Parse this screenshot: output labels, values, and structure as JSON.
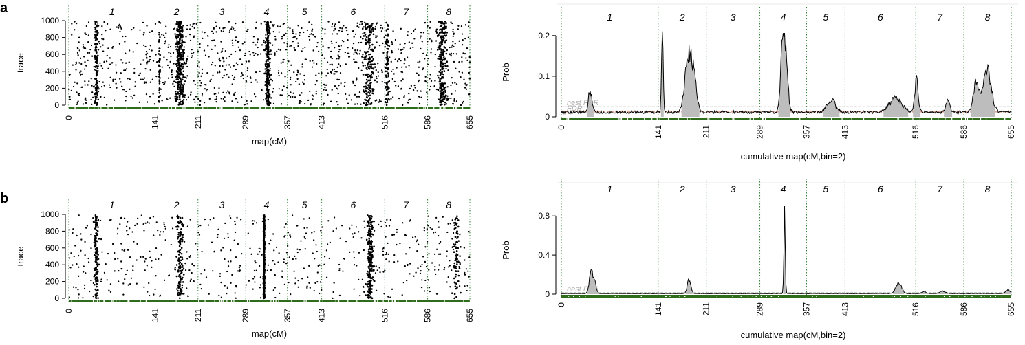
{
  "panels": [
    {
      "letter": "a",
      "chart_data": [
        {
          "type": "scatter",
          "xlabel": "map(cM)",
          "ylabel": "trace",
          "xlim": [
            0,
            655
          ],
          "ylim": [
            0,
            1000
          ],
          "yticks": [
            0,
            200,
            400,
            600,
            800,
            1000
          ],
          "xticks": [
            0,
            141,
            211,
            289,
            357,
            413,
            516,
            586,
            655
          ],
          "chromosomes": [
            {
              "label": "1",
              "start": 0,
              "end": 141
            },
            {
              "label": "2",
              "start": 141,
              "end": 211
            },
            {
              "label": "3",
              "start": 211,
              "end": 289
            },
            {
              "label": "4",
              "start": 289,
              "end": 357
            },
            {
              "label": "5",
              "start": 357,
              "end": 413
            },
            {
              "label": "6",
              "start": 413,
              "end": 516
            },
            {
              "label": "7",
              "start": 516,
              "end": 586
            },
            {
              "label": "8",
              "start": 586,
              "end": 655
            }
          ],
          "background_density": 1.8,
          "hotspots": [
            {
              "x": 45,
              "width": 3,
              "density": 0.3
            },
            {
              "x": 148,
              "width": 1.5,
              "density": 0.1
            },
            {
              "x": 181,
              "width": 7,
              "density": 0.75
            },
            {
              "x": 325,
              "width": 4,
              "density": 0.55
            },
            {
              "x": 490,
              "width": 9,
              "density": 0.45
            },
            {
              "x": 520,
              "width": 3,
              "density": 0.2
            },
            {
              "x": 610,
              "width": 7,
              "density": 0.55
            }
          ]
        },
        {
          "type": "area",
          "xlabel": "cumulative map(cM,bin=2)",
          "ylabel": "Prob",
          "xlim": [
            0,
            655
          ],
          "ylim": [
            0,
            0.22
          ],
          "yticks": [
            0.0,
            0.1,
            0.2
          ],
          "xticks": [
            0,
            141,
            211,
            289,
            357,
            413,
            516,
            586,
            655
          ],
          "chromosomes": [
            "1",
            "2",
            "3",
            "4",
            "5",
            "6",
            "7",
            "8"
          ],
          "baseline": 0.01,
          "reference_lines": [
            {
              "label": "nest FDR",
              "value": 0.025,
              "color": "#b0b0b0"
            },
            {
              "label": "FDR",
              "value": 0.012,
              "color": "#d07050"
            }
          ],
          "peaks": [
            {
              "x": 42,
              "height": 0.054,
              "width": 2.5
            },
            {
              "x": 147,
              "height": 0.215,
              "width": 1.2
            },
            {
              "x": 185,
              "height": 0.13,
              "width": 5
            },
            {
              "x": 193,
              "height": 0.07,
              "width": 4
            },
            {
              "x": 322,
              "height": 0.14,
              "width": 3
            },
            {
              "x": 327,
              "height": 0.12,
              "width": 3
            },
            {
              "x": 393,
              "height": 0.03,
              "width": 6
            },
            {
              "x": 487,
              "height": 0.035,
              "width": 9
            },
            {
              "x": 517,
              "height": 0.08,
              "width": 2.5
            },
            {
              "x": 563,
              "height": 0.03,
              "width": 3
            },
            {
              "x": 604,
              "height": 0.07,
              "width": 4
            },
            {
              "x": 620,
              "height": 0.1,
              "width": 6
            }
          ]
        }
      ]
    },
    {
      "letter": "b",
      "chart_data": [
        {
          "type": "scatter",
          "xlabel": "map(cM)",
          "ylabel": "trace",
          "xlim": [
            0,
            655
          ],
          "ylim": [
            0,
            1000
          ],
          "yticks": [
            0,
            200,
            400,
            600,
            800,
            1000
          ],
          "xticks": [
            0,
            141,
            211,
            289,
            357,
            413,
            516,
            586,
            655
          ],
          "chromosomes": [
            {
              "label": "1",
              "start": 0,
              "end": 141
            },
            {
              "label": "2",
              "start": 141,
              "end": 211
            },
            {
              "label": "3",
              "start": 211,
              "end": 289
            },
            {
              "label": "4",
              "start": 289,
              "end": 357
            },
            {
              "label": "5",
              "start": 357,
              "end": 413
            },
            {
              "label": "6",
              "start": 413,
              "end": 516
            },
            {
              "label": "7",
              "start": 516,
              "end": 586
            },
            {
              "label": "8",
              "start": 586,
              "end": 655
            }
          ],
          "background_density": 0.9,
          "hotspots": [
            {
              "x": 45,
              "width": 3,
              "density": 0.35
            },
            {
              "x": 182,
              "width": 5,
              "density": 0.35
            },
            {
              "x": 319,
              "width": 1,
              "density": 0.95
            },
            {
              "x": 492,
              "width": 5,
              "density": 0.6
            },
            {
              "x": 633,
              "width": 6,
              "density": 0.2
            }
          ]
        },
        {
          "type": "area",
          "xlabel": "cumulative map(cM,bin=2)",
          "ylabel": "Prob",
          "xlim": [
            0,
            655
          ],
          "ylim": [
            0,
            0.9
          ],
          "yticks": [
            0.0,
            0.4,
            0.8
          ],
          "xticks": [
            0,
            141,
            211,
            289,
            357,
            413,
            516,
            586,
            655
          ],
          "chromosomes": [
            "1",
            "2",
            "3",
            "4",
            "5",
            "6",
            "7",
            "8"
          ],
          "baseline": 0.005,
          "reference_lines": [
            {
              "label": "nest FDR",
              "value": 0.015,
              "color": "#b0b0b0"
            }
          ],
          "peaks": [
            {
              "x": 43,
              "height": 0.2,
              "width": 2.5
            },
            {
              "x": 48,
              "height": 0.12,
              "width": 2.5
            },
            {
              "x": 186,
              "height": 0.14,
              "width": 2.5
            },
            {
              "x": 325,
              "height": 0.85,
              "width": 1.0
            },
            {
              "x": 491,
              "height": 0.12,
              "width": 4
            },
            {
              "x": 528,
              "height": 0.02,
              "width": 3
            },
            {
              "x": 555,
              "height": 0.025,
              "width": 4
            },
            {
              "x": 650,
              "height": 0.04,
              "width": 3
            }
          ]
        }
      ]
    }
  ],
  "colors": {
    "divider": "#2e7d32",
    "rug": "#2e6b1a",
    "fill": "#bdbdbd",
    "point": "#000000"
  }
}
